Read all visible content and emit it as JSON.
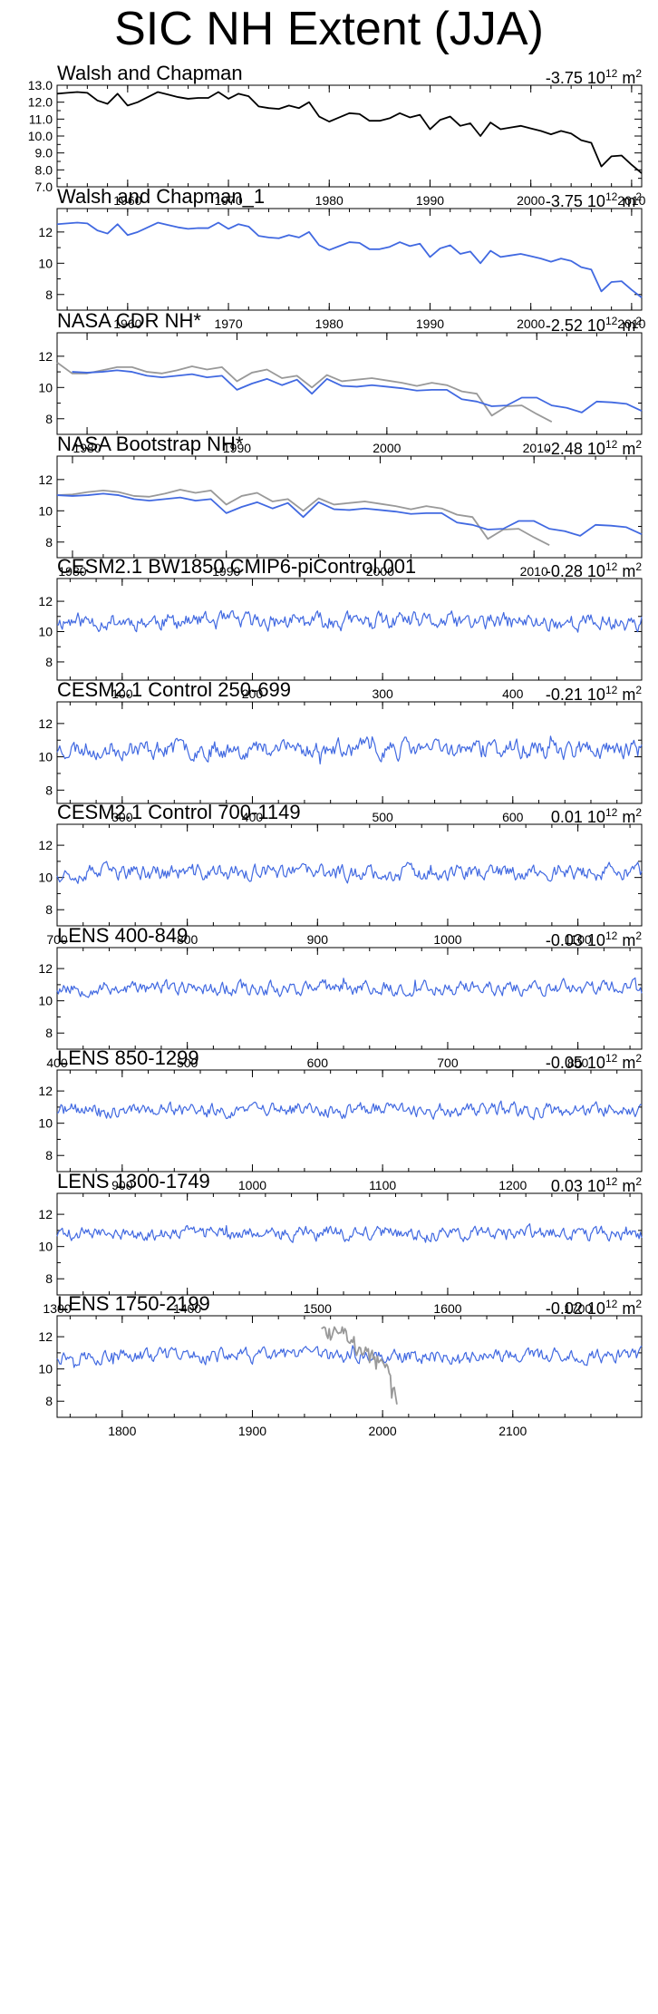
{
  "figure": {
    "title": "SIC NH Extent (JJA)"
  },
  "colors": {
    "observed": "#000000",
    "model": "#4169e1",
    "overlay": "#999999"
  },
  "chart_data": [
    {
      "type": "line",
      "title": "Walsh and Chapman",
      "trend": {
        "value": "-3.75",
        "unit_base": "10",
        "unit_exp": "12",
        "unit": "m",
        "unit_power": "2"
      },
      "xlim": [
        1953,
        2011
      ],
      "ylim": [
        7,
        13
      ],
      "xticks": [
        1960,
        1970,
        1980,
        1990,
        2000,
        2010
      ],
      "yticks": [
        7.0,
        8.0,
        9.0,
        10.0,
        11.0,
        12.0,
        13.0
      ],
      "ytick_labels": [
        "7.0",
        "8.0",
        "9.0",
        "10.0",
        "11.0",
        "12.0",
        "13.0"
      ],
      "series": [
        {
          "color": "#000000",
          "x_start": 1953,
          "values": [
            12.5,
            12.55,
            12.6,
            12.55,
            12.1,
            11.9,
            12.5,
            11.8,
            12.0,
            12.3,
            12.6,
            12.45,
            12.3,
            12.2,
            12.25,
            12.25,
            12.6,
            12.2,
            12.5,
            12.35,
            11.75,
            11.65,
            11.6,
            11.8,
            11.65,
            12.0,
            11.15,
            10.85,
            11.1,
            11.35,
            11.3,
            10.9,
            10.9,
            11.05,
            11.35,
            11.1,
            11.25,
            10.4,
            10.95,
            11.15,
            10.6,
            10.75,
            10.0,
            10.8,
            10.4,
            10.5,
            10.6,
            10.45,
            10.3,
            10.1,
            10.3,
            10.15,
            9.75,
            9.6,
            8.2,
            8.8,
            8.85,
            8.3,
            7.8
          ]
        }
      ]
    },
    {
      "type": "line",
      "title": "Walsh and Chapman_1",
      "trend": {
        "value": "-3.75",
        "unit_base": "10",
        "unit_exp": "12",
        "unit": "m",
        "unit_power": "2"
      },
      "xlim": [
        1953,
        2011
      ],
      "ylim": [
        7,
        13.5
      ],
      "xticks": [
        1960,
        1970,
        1980,
        1990,
        2000,
        2010
      ],
      "yticks": [
        8,
        10,
        12
      ],
      "series": [
        {
          "color": "#4169e1",
          "x_start": 1953,
          "values": [
            12.5,
            12.55,
            12.6,
            12.55,
            12.1,
            11.9,
            12.5,
            11.8,
            12.0,
            12.3,
            12.6,
            12.45,
            12.3,
            12.2,
            12.25,
            12.25,
            12.6,
            12.2,
            12.5,
            12.35,
            11.75,
            11.65,
            11.6,
            11.8,
            11.65,
            12.0,
            11.15,
            10.85,
            11.1,
            11.35,
            11.3,
            10.9,
            10.9,
            11.05,
            11.35,
            11.1,
            11.25,
            10.4,
            10.95,
            11.15,
            10.6,
            10.75,
            10.0,
            10.8,
            10.4,
            10.5,
            10.6,
            10.45,
            10.3,
            10.1,
            10.3,
            10.15,
            9.75,
            9.6,
            8.2,
            8.8,
            8.85,
            8.3,
            7.8
          ]
        }
      ]
    },
    {
      "type": "line",
      "title": "NASA CDR NH*",
      "trend": {
        "value": "-2.52",
        "unit_base": "10",
        "unit_exp": "12",
        "unit": "m",
        "unit_power": "2"
      },
      "xlim": [
        1978,
        2017
      ],
      "ylim": [
        7,
        13.5
      ],
      "xticks": [
        1980,
        1990,
        2000,
        2010
      ],
      "yticks": [
        8,
        10,
        12
      ],
      "series": [
        {
          "color": "#999999",
          "x_start": 1978,
          "values": [
            11.6,
            10.9,
            10.9,
            11.1,
            11.3,
            11.3,
            11.0,
            10.9,
            11.1,
            11.35,
            11.15,
            11.3,
            10.4,
            10.95,
            11.15,
            10.6,
            10.75,
            10.0,
            10.8,
            10.4,
            10.5,
            10.6,
            10.45,
            10.3,
            10.1,
            10.3,
            10.15,
            9.75,
            9.6,
            8.2,
            8.8,
            8.85,
            8.3,
            7.8
          ]
        },
        {
          "color": "#4169e1",
          "x_start": 1979,
          "values": [
            11.0,
            10.95,
            11.0,
            11.1,
            11.0,
            10.75,
            10.65,
            10.75,
            10.85,
            10.65,
            10.75,
            9.85,
            10.25,
            10.55,
            10.15,
            10.5,
            9.6,
            10.55,
            10.1,
            10.05,
            10.15,
            10.05,
            9.95,
            9.8,
            9.85,
            9.85,
            9.25,
            9.1,
            8.8,
            8.85,
            9.35,
            9.35,
            8.85,
            8.7,
            8.4,
            9.1,
            9.05,
            8.95,
            8.5
          ]
        }
      ]
    },
    {
      "type": "line",
      "title": "NASA Bootstrap NH*",
      "trend": {
        "value": "-2.48",
        "unit_base": "10",
        "unit_exp": "12",
        "unit": "m",
        "unit_power": "2"
      },
      "xlim": [
        1979,
        2017
      ],
      "ylim": [
        7,
        13.5
      ],
      "xticks": [
        1980,
        1990,
        2000,
        2010
      ],
      "yticks": [
        8,
        10,
        12
      ],
      "series": [
        {
          "color": "#999999",
          "x_start": 1979,
          "values": [
            11.0,
            11.05,
            11.2,
            11.3,
            11.2,
            10.95,
            10.9,
            11.1,
            11.35,
            11.15,
            11.3,
            10.4,
            10.95,
            11.15,
            10.6,
            10.75,
            10.0,
            10.8,
            10.4,
            10.5,
            10.6,
            10.45,
            10.3,
            10.1,
            10.3,
            10.15,
            9.75,
            9.6,
            8.2,
            8.8,
            8.85,
            8.3,
            7.8
          ]
        },
        {
          "color": "#4169e1",
          "x_start": 1979,
          "values": [
            11.0,
            10.95,
            11.0,
            11.1,
            11.0,
            10.75,
            10.65,
            10.75,
            10.85,
            10.65,
            10.75,
            9.85,
            10.25,
            10.55,
            10.15,
            10.5,
            9.6,
            10.55,
            10.1,
            10.05,
            10.15,
            10.05,
            9.95,
            9.8,
            9.85,
            9.85,
            9.25,
            9.1,
            8.8,
            8.85,
            9.35,
            9.35,
            8.85,
            8.7,
            8.4,
            9.1,
            9.05,
            8.95,
            8.5
          ]
        }
      ]
    },
    {
      "type": "line",
      "title": "CESM2.1 BW1850 CMIP6-piControl.001",
      "trend": {
        "value": "-0.28",
        "unit_base": "10",
        "unit_exp": "12",
        "unit": "m",
        "unit_power": "2"
      },
      "xlim": [
        50,
        499
      ],
      "ylim": [
        6.8,
        13.5
      ],
      "xticks": [
        100,
        200,
        300,
        400
      ],
      "yticks": [
        8,
        10,
        12
      ],
      "series": [
        {
          "color": "#4169e1",
          "x_start": 50,
          "x_end": 499,
          "generated": {
            "mean": 10.7,
            "amp": 0.45,
            "seed": 11,
            "drift": -0.1
          }
        }
      ]
    },
    {
      "type": "line",
      "title": "CESM2.1 Control 250-699",
      "trend": {
        "value": "-0.21",
        "unit_base": "10",
        "unit_exp": "12",
        "unit": "m",
        "unit_power": "2"
      },
      "xlim": [
        250,
        699
      ],
      "ylim": [
        7.2,
        13.3
      ],
      "xticks": [
        300,
        400,
        500,
        600
      ],
      "yticks": [
        8,
        10,
        12
      ],
      "series": [
        {
          "color": "#4169e1",
          "x_start": 250,
          "x_end": 699,
          "generated": {
            "mean": 10.5,
            "amp": 0.45,
            "seed": 23,
            "drift": -0.05
          }
        }
      ]
    },
    {
      "type": "line",
      "title": "CESM2.1 Control 700-1149",
      "trend": {
        "value": "0.01",
        "unit_base": "10",
        "unit_exp": "12",
        "unit": "m",
        "unit_power": "2"
      },
      "xlim": [
        700,
        1149
      ],
      "ylim": [
        7,
        13.3
      ],
      "xticks": [
        700,
        800,
        900,
        1000,
        1100
      ],
      "yticks": [
        8,
        10,
        12
      ],
      "series": [
        {
          "color": "#4169e1",
          "x_start": 700,
          "x_end": 1149,
          "generated": {
            "mean": 10.3,
            "amp": 0.4,
            "seed": 37,
            "drift": 0.0
          }
        }
      ]
    },
    {
      "type": "line",
      "title": "LENS 400-849",
      "trend": {
        "value": "-0.03",
        "unit_base": "10",
        "unit_exp": "12",
        "unit": "m",
        "unit_power": "2"
      },
      "xlim": [
        400,
        849
      ],
      "ylim": [
        7,
        13.3
      ],
      "xticks": [
        400,
        500,
        600,
        700,
        800
      ],
      "yticks": [
        8,
        10,
        12
      ],
      "series": [
        {
          "color": "#4169e1",
          "x_start": 400,
          "x_end": 849,
          "generated": {
            "mean": 10.8,
            "amp": 0.35,
            "seed": 53,
            "drift": 0.0
          }
        }
      ]
    },
    {
      "type": "line",
      "title": "LENS 850-1299",
      "trend": {
        "value": "-0.05",
        "unit_base": "10",
        "unit_exp": "12",
        "unit": "m",
        "unit_power": "2"
      },
      "xlim": [
        850,
        1299
      ],
      "ylim": [
        7,
        13.3
      ],
      "xticks": [
        900,
        1000,
        1100,
        1200
      ],
      "yticks": [
        8,
        10,
        12
      ],
      "series": [
        {
          "color": "#4169e1",
          "x_start": 850,
          "x_end": 1299,
          "generated": {
            "mean": 10.8,
            "amp": 0.35,
            "seed": 71,
            "drift": 0.0
          }
        }
      ]
    },
    {
      "type": "line",
      "title": "LENS 1300-1749",
      "trend": {
        "value": "0.03",
        "unit_base": "10",
        "unit_exp": "12",
        "unit": "m",
        "unit_power": "2"
      },
      "xlim": [
        1300,
        1749
      ],
      "ylim": [
        7,
        13.3
      ],
      "xticks": [
        1300,
        1400,
        1500,
        1600,
        1700
      ],
      "yticks": [
        8,
        10,
        12
      ],
      "series": [
        {
          "color": "#4169e1",
          "x_start": 1300,
          "x_end": 1749,
          "generated": {
            "mean": 10.8,
            "amp": 0.35,
            "seed": 89,
            "drift": 0.0
          }
        }
      ]
    },
    {
      "type": "line",
      "title": "LENS 1750-2199",
      "trend": {
        "value": "-0.02",
        "unit_base": "10",
        "unit_exp": "12",
        "unit": "m",
        "unit_power": "2"
      },
      "xlim": [
        1750,
        2199
      ],
      "ylim": [
        7,
        13.3
      ],
      "xticks": [
        1800,
        1900,
        2000,
        2100
      ],
      "yticks": [
        8,
        10,
        12
      ],
      "series": [
        {
          "color": "#4169e1",
          "x_start": 1750,
          "x_end": 2199,
          "generated": {
            "mean": 10.8,
            "amp": 0.35,
            "seed": 97,
            "drift": 0.0
          }
        },
        {
          "color": "#999999",
          "x_start": 1953,
          "values": [
            12.5,
            12.55,
            12.6,
            12.55,
            12.1,
            11.9,
            12.5,
            11.8,
            12.0,
            12.3,
            12.6,
            12.45,
            12.3,
            12.2,
            12.25,
            12.25,
            12.6,
            12.2,
            12.5,
            12.35,
            11.75,
            11.65,
            11.6,
            11.8,
            11.65,
            12.0,
            11.15,
            10.85,
            11.1,
            11.35,
            11.3,
            10.9,
            10.9,
            11.05,
            11.35,
            11.1,
            11.25,
            10.4,
            10.95,
            11.15,
            10.6,
            10.75,
            10.0,
            10.8,
            10.4,
            10.5,
            10.6,
            10.45,
            10.3,
            10.1,
            10.3,
            10.15,
            9.75,
            9.6,
            8.2,
            8.8,
            8.85,
            8.3,
            7.8
          ]
        }
      ]
    }
  ]
}
